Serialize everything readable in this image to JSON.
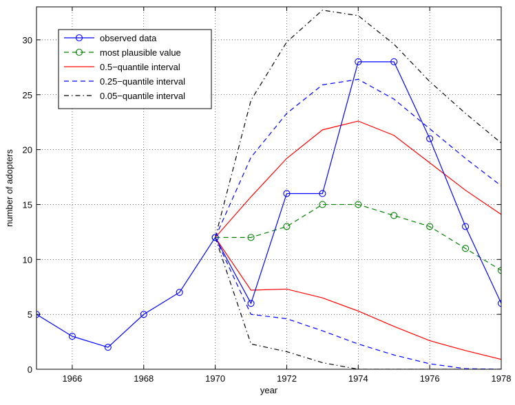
{
  "chart_data": {
    "type": "line",
    "title": "",
    "xlabel": "year",
    "ylabel": "number of adopters",
    "xlim": [
      1965,
      1978
    ],
    "ylim": [
      0,
      33
    ],
    "xticks": [
      1966,
      1968,
      1970,
      1972,
      1974,
      1976,
      1978
    ],
    "yticks": [
      0,
      5,
      10,
      15,
      20,
      25,
      30
    ],
    "grid": true,
    "legend_position": "top-left",
    "series": [
      {
        "name": "observed data",
        "color": "#0000ff",
        "dash": "solid",
        "marker": "circle",
        "x": [
          1965,
          1966,
          1967,
          1968,
          1969,
          1970,
          1971,
          1972,
          1973,
          1974,
          1975,
          1976,
          1977,
          1978
        ],
        "y": [
          5,
          3,
          2,
          5,
          7,
          12,
          6,
          16,
          16,
          28,
          28,
          21,
          13,
          6
        ]
      },
      {
        "name": "most plausible value",
        "color": "#008000",
        "dash": "dashed",
        "marker": "circle",
        "x": [
          1970,
          1971,
          1972,
          1973,
          1974,
          1975,
          1976,
          1977,
          1978
        ],
        "y": [
          12,
          12,
          13,
          15,
          15,
          14,
          13,
          11,
          9
        ]
      },
      {
        "name": "0.5−quantile interval",
        "color": "#ff0000",
        "dash": "solid",
        "marker": "none",
        "x": [
          1970,
          1971,
          1972,
          1973,
          1974,
          1975,
          1976,
          1977,
          1978
        ],
        "y": [
          12,
          15.7,
          19.2,
          21.8,
          22.6,
          21.3,
          18.8,
          16.3,
          14.1
        ],
        "y_lower": [
          12,
          7.2,
          7.3,
          6.5,
          5.3,
          3.9,
          2.6,
          1.7,
          0.9
        ]
      },
      {
        "name": "0.25−quantile interval",
        "color": "#0000ff",
        "dash": "dashed",
        "marker": "none",
        "x": [
          1970,
          1971,
          1972,
          1973,
          1974,
          1975,
          1976,
          1977,
          1978
        ],
        "y": [
          12,
          19.3,
          23.3,
          25.9,
          26.4,
          24.6,
          21.9,
          19.2,
          16.7
        ],
        "y_lower": [
          12,
          5.0,
          4.6,
          3.5,
          2.3,
          1.3,
          0.5,
          0.05,
          0
        ]
      },
      {
        "name": "0.05−quantile interval",
        "color": "#000000",
        "dash": "dashdot",
        "marker": "none",
        "x": [
          1970,
          1971,
          1972,
          1973,
          1974,
          1975,
          1976,
          1977,
          1978
        ],
        "y": [
          12,
          24.5,
          29.8,
          32.7,
          32.2,
          29.6,
          26.2,
          23.3,
          20.6
        ],
        "y_lower": [
          12,
          2.3,
          1.6,
          0.6,
          0,
          0,
          0,
          0,
          0
        ]
      }
    ]
  }
}
